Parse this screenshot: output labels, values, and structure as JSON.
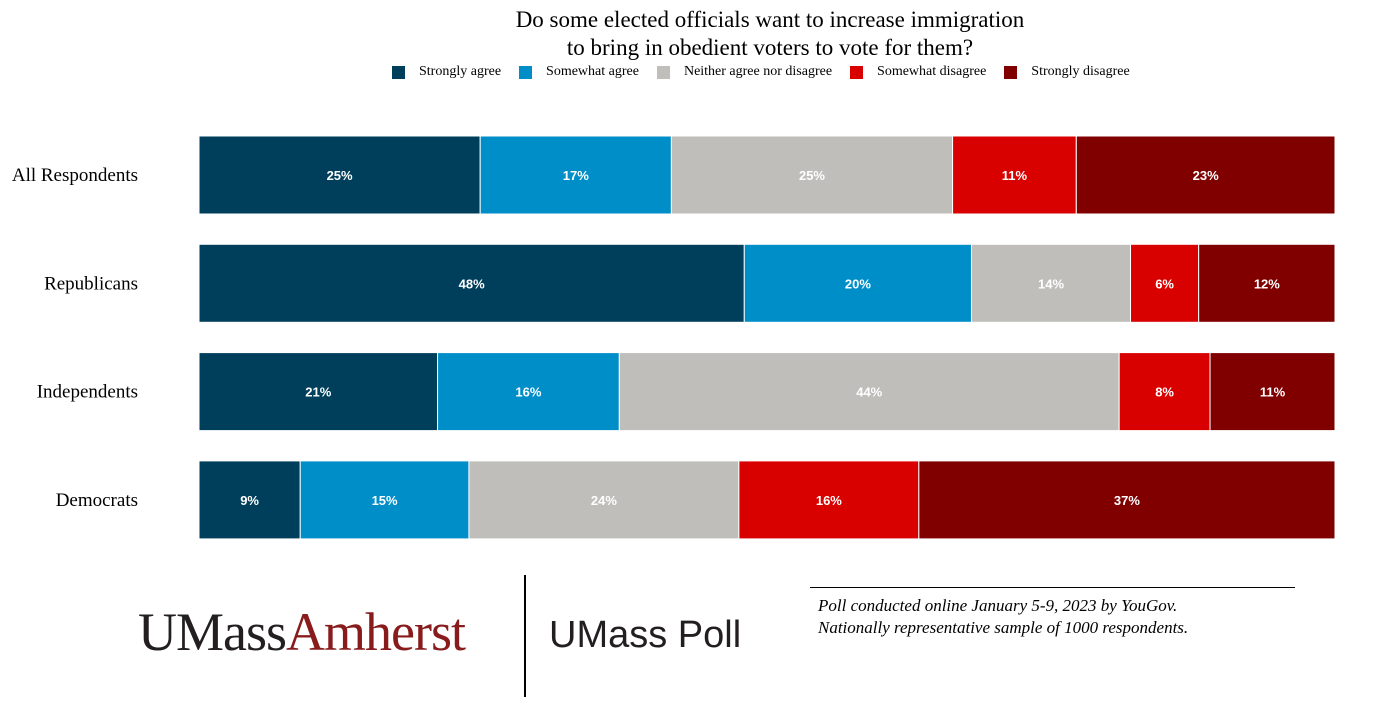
{
  "chart_data": {
    "type": "bar",
    "orientation": "horizontal",
    "stacked": true,
    "title_lines": [
      "Do some elected officials want to increase immigration",
      "to bring in obedient voters to vote for them?"
    ],
    "legend_placement": "top",
    "categories": [
      "All Respondents",
      "Republicans",
      "Independents",
      "Democrats"
    ],
    "series": [
      {
        "name": "Strongly agree",
        "color": "#003f5c",
        "values": [
          25,
          48,
          21,
          9
        ],
        "labels": [
          "25%",
          "48%",
          "21%",
          "9%"
        ]
      },
      {
        "name": "Somewhat agree",
        "color": "#008ec9",
        "values": [
          17,
          20,
          16,
          15
        ],
        "labels": [
          "17%",
          "20%",
          "16%",
          "15%"
        ]
      },
      {
        "name": "Neither agree nor disagree",
        "color": "#bfbeba",
        "values": [
          25,
          14,
          44,
          24
        ],
        "labels": [
          "25%",
          "14%",
          "44%",
          "24%"
        ]
      },
      {
        "name": "Somewhat disagree",
        "color": "#d90000",
        "values": [
          11,
          6,
          8,
          16
        ],
        "labels": [
          "11%",
          "6%",
          "8%",
          "16%"
        ]
      },
      {
        "name": "Strongly disagree",
        "color": "#800000",
        "values": [
          23,
          12,
          11,
          37
        ],
        "labels": [
          "23%",
          "12%",
          "11%",
          "37%"
        ]
      }
    ],
    "grid": false
  },
  "footer": {
    "logo_part1": "UMass",
    "logo_part2": "Amherst",
    "poll_name": "UMass Poll",
    "note_line1": "Poll conducted online January 5-9, 2023  by YouGov.",
    "note_line2": "Nationally representative sample of 1000 respondents."
  }
}
